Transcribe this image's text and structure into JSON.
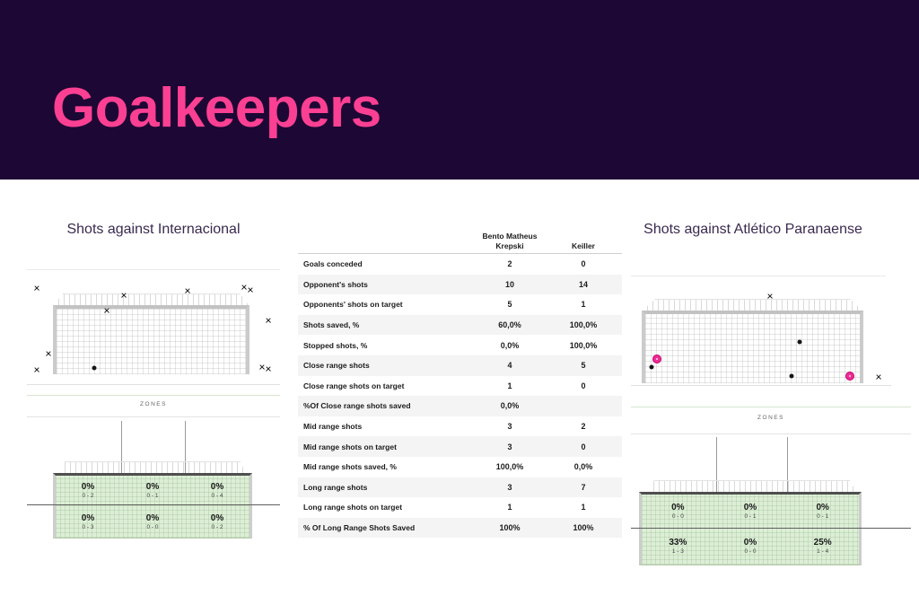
{
  "page": {
    "title": "Goalkeepers"
  },
  "colors": {
    "banner_bg": "#1d0734",
    "accent_pink": "#fb4093",
    "section_title": "#3a2a4f",
    "zone_green": "#ddeed6",
    "table_stripe": "#f4f4f4",
    "goal_marker_pink": "#ee2d92"
  },
  "chart_data": [
    {
      "type": "table",
      "columns": [
        {
          "lines": [
            "Bento Matheus",
            "Krepski"
          ]
        },
        {
          "lines": [
            "Keiller"
          ]
        }
      ],
      "rows": [
        {
          "label": "Goals conceded",
          "v1": "2",
          "v2": "0"
        },
        {
          "label": "Opponent's shots",
          "v1": "10",
          "v2": "14"
        },
        {
          "label": "Opponents' shots  on target",
          "v1": "5",
          "v2": "1"
        },
        {
          "label": "Shots saved, %",
          "v1": "60,0%",
          "v2": "100,0%"
        },
        {
          "label": "Stopped shots, %",
          "v1": "0,0%",
          "v2": "100,0%"
        },
        {
          "label": "Close range shots",
          "v1": "4",
          "v2": "5"
        },
        {
          "label": "Close range shots on target",
          "v1": "1",
          "v2": "0"
        },
        {
          "label": "%Of Close range shots saved",
          "v1": "0,0%",
          "v2": ""
        },
        {
          "label": "Mid range shots",
          "v1": "3",
          "v2": "2"
        },
        {
          "label": "Mid range shots on target",
          "v1": "3",
          "v2": "0"
        },
        {
          "label": "Mid range shots saved, %",
          "v1": "100,0%",
          "v2": "0,0%"
        },
        {
          "label": "Long range shots",
          "v1": "3",
          "v2": "7"
        },
        {
          "label": "Long range shots on target",
          "v1": "1",
          "v2": "1"
        },
        {
          "label": "% Of Long Range Shots Saved",
          "v1": "100%",
          "v2": "100%"
        }
      ]
    },
    {
      "type": "shotmap",
      "title": "Shots against Internacional",
      "zones_label": "ZONES",
      "shots": [
        {
          "type": "miss",
          "x": 3.8,
          "y": 14.4
        },
        {
          "type": "miss",
          "x": 38.4,
          "y": 20.8
        },
        {
          "type": "miss",
          "x": 63.6,
          "y": 16.8
        },
        {
          "type": "miss",
          "x": 85.7,
          "y": 13.6
        },
        {
          "type": "miss",
          "x": 88.4,
          "y": 15.6
        },
        {
          "type": "miss",
          "x": 31.5,
          "y": 34.4
        },
        {
          "type": "miss",
          "x": 95.3,
          "y": 43.2
        },
        {
          "type": "miss",
          "x": 8.4,
          "y": 73.0
        },
        {
          "type": "miss",
          "x": 4.0,
          "y": 87.0
        },
        {
          "type": "miss",
          "x": 93.0,
          "y": 85.0
        },
        {
          "type": "miss",
          "x": 95.3,
          "y": 86.2
        },
        {
          "type": "shot",
          "x": 26.6,
          "y": 85.4
        }
      ],
      "zone_cells": [
        {
          "pct": "0%",
          "sub": "0 - 2"
        },
        {
          "pct": "0%",
          "sub": "0 - 1"
        },
        {
          "pct": "0%",
          "sub": "0 - 4"
        },
        {
          "pct": "0%",
          "sub": "0 - 3"
        },
        {
          "pct": "0%",
          "sub": "0 - 0"
        },
        {
          "pct": "0%",
          "sub": "0 - 2"
        }
      ]
    },
    {
      "type": "shotmap",
      "title": "Shots against Atlético Paranaense",
      "zones_label": "ZONES",
      "shots": [
        {
          "type": "miss",
          "x": 49.7,
          "y": 17.6
        },
        {
          "type": "shot",
          "x": 60.3,
          "y": 59.5
        },
        {
          "type": "goal",
          "x": 9.3,
          "y": 75.2
        },
        {
          "type": "shot",
          "x": 7.3,
          "y": 82.6
        },
        {
          "type": "shot",
          "x": 57.4,
          "y": 91.2
        },
        {
          "type": "goal",
          "x": 78.2,
          "y": 90.7
        },
        {
          "type": "miss",
          "x": 88.4,
          "y": 92.0
        }
      ],
      "zone_cells": [
        {
          "pct": "0%",
          "sub": "0 - 0"
        },
        {
          "pct": "0%",
          "sub": "0 - 1"
        },
        {
          "pct": "0%",
          "sub": "0 - 1"
        },
        {
          "pct": "33%",
          "sub": "1 - 3"
        },
        {
          "pct": "0%",
          "sub": "0 - 0"
        },
        {
          "pct": "25%",
          "sub": "1 - 4"
        }
      ]
    }
  ]
}
